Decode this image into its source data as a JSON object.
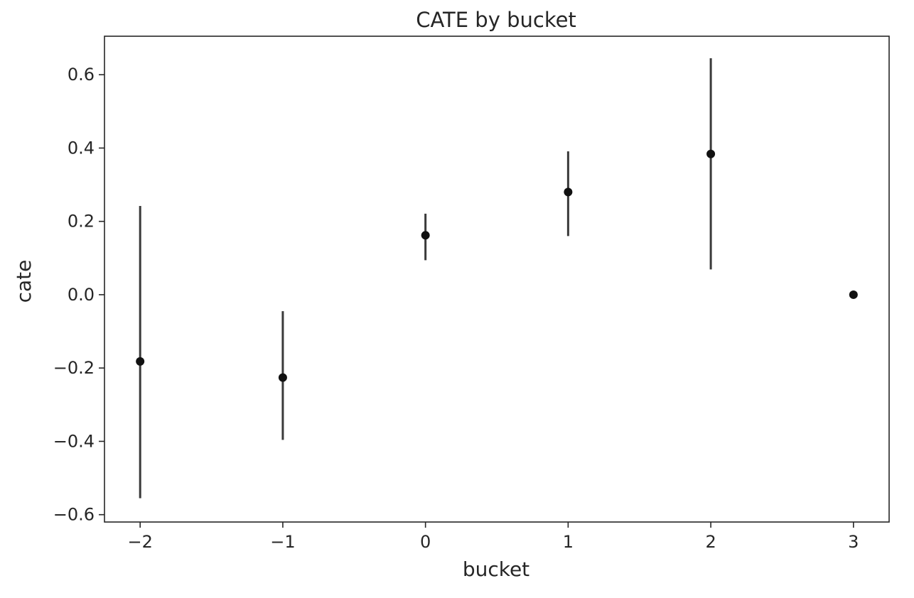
{
  "chart_data": {
    "type": "scatter",
    "title": "CATE by bucket",
    "xlabel": "bucket",
    "ylabel": "cate",
    "xlim": [
      -2.25,
      3.25
    ],
    "ylim": [
      -0.62,
      0.705
    ],
    "xticks": [
      -2,
      -1,
      0,
      1,
      2,
      3
    ],
    "xtick_labels": [
      "−2",
      "−1",
      "0",
      "1",
      "2",
      "3"
    ],
    "yticks": [
      -0.6,
      -0.4,
      -0.2,
      0.0,
      0.2,
      0.4,
      0.6
    ],
    "ytick_labels": [
      "−0.6",
      "−0.4",
      "−0.2",
      "0.0",
      "0.2",
      "0.4",
      "0.6"
    ],
    "grid": false,
    "points": [
      {
        "x": -2,
        "y": -0.182,
        "lower": -0.555,
        "upper": 0.242
      },
      {
        "x": -1,
        "y": -0.226,
        "lower": -0.396,
        "upper": -0.045
      },
      {
        "x": 0,
        "y": 0.162,
        "lower": 0.094,
        "upper": 0.221
      },
      {
        "x": 1,
        "y": 0.28,
        "lower": 0.16,
        "upper": 0.391
      },
      {
        "x": 2,
        "y": 0.384,
        "lower": 0.069,
        "upper": 0.645
      },
      {
        "x": 3,
        "y": 0.0,
        "lower": 0.0,
        "upper": 0.0
      }
    ],
    "colors": {
      "marker": "#111111",
      "errorbar": "#3a3a3a",
      "axes": "#262626"
    }
  }
}
